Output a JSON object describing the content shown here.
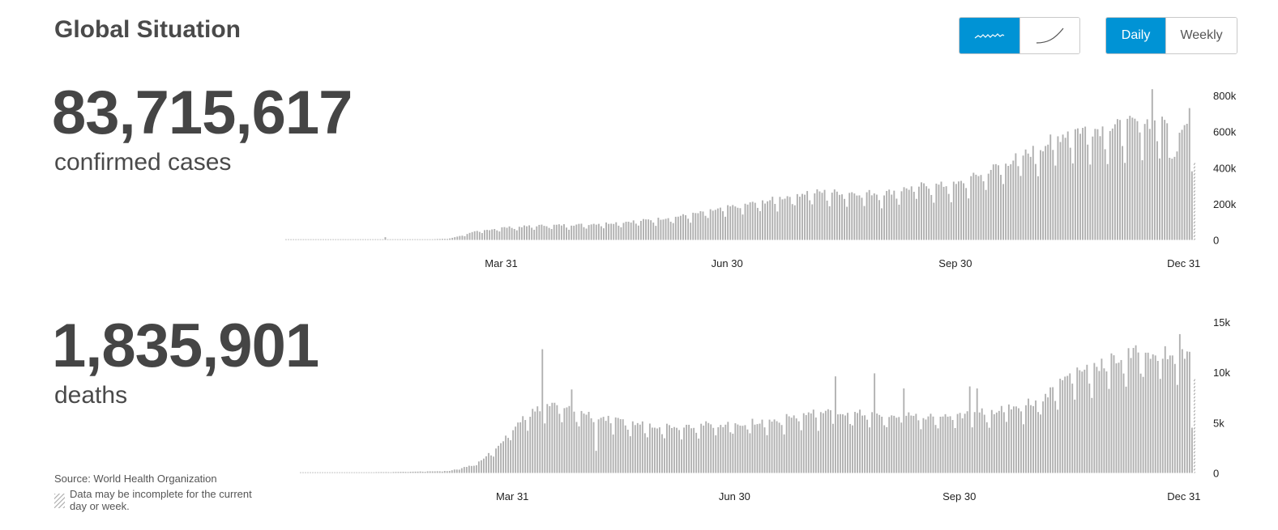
{
  "page": {
    "title": "Global Situation"
  },
  "controls": {
    "mode_buttons": [
      {
        "icon": "sparkline-daily-icon",
        "active": true
      },
      {
        "icon": "cumulative-curve-icon",
        "active": false
      }
    ],
    "period_buttons": [
      {
        "label": "Daily",
        "active": true
      },
      {
        "label": "Weekly",
        "active": false
      }
    ]
  },
  "metrics": {
    "cases": {
      "value": "83,715,617",
      "label": "confirmed cases"
    },
    "deaths": {
      "value": "1,835,901",
      "label": "deaths"
    }
  },
  "footer": {
    "source": "Source: World Health Organization",
    "note": "Data may be incomplete for the current day or week."
  },
  "colors": {
    "bar": "#b0b0b0",
    "accent": "#0093d5",
    "text": "#4a4a4a"
  },
  "chart_data": [
    {
      "type": "bar",
      "name": "cases",
      "x_start": "2020-01-04",
      "x_end": "2021-01-04",
      "xticks": [
        {
          "date": "2020-03-31",
          "label": "Mar 31"
        },
        {
          "date": "2020-06-30",
          "label": "Jun 30"
        },
        {
          "date": "2020-09-30",
          "label": "Sep 30"
        },
        {
          "date": "2020-12-31",
          "label": "Dec 31"
        }
      ],
      "yticks": [
        {
          "value": 0,
          "label": "0"
        },
        {
          "value": 200000,
          "label": "200k"
        },
        {
          "value": 400000,
          "label": "400k"
        },
        {
          "value": 600000,
          "label": "600k"
        },
        {
          "value": 800000,
          "label": "800k"
        }
      ],
      "ylim": [
        0,
        800000
      ],
      "weekly_pattern": "dips every 7th day",
      "incomplete_last_day": true,
      "weekly_dip_factor": 0.72,
      "trend": [
        {
          "date": "2020-01-04",
          "value": 0
        },
        {
          "date": "2020-02-13",
          "value": 1500
        },
        {
          "date": "2020-03-01",
          "value": 2000
        },
        {
          "date": "2020-03-10",
          "value": 8000
        },
        {
          "date": "2020-03-20",
          "value": 45000
        },
        {
          "date": "2020-03-31",
          "value": 68000
        },
        {
          "date": "2020-04-15",
          "value": 80000
        },
        {
          "date": "2020-05-01",
          "value": 85000
        },
        {
          "date": "2020-05-15",
          "value": 95000
        },
        {
          "date": "2020-06-01",
          "value": 115000
        },
        {
          "date": "2020-06-15",
          "value": 140000
        },
        {
          "date": "2020-06-30",
          "value": 180000
        },
        {
          "date": "2020-07-15",
          "value": 215000
        },
        {
          "date": "2020-08-01",
          "value": 265000
        },
        {
          "date": "2020-08-15",
          "value": 265000
        },
        {
          "date": "2020-09-01",
          "value": 260000
        },
        {
          "date": "2020-09-15",
          "value": 300000
        },
        {
          "date": "2020-09-30",
          "value": 305000
        },
        {
          "date": "2020-10-15",
          "value": 400000
        },
        {
          "date": "2020-11-01",
          "value": 500000
        },
        {
          "date": "2020-11-15",
          "value": 610000
        },
        {
          "date": "2020-12-01",
          "value": 620000
        },
        {
          "date": "2020-12-15",
          "value": 660000
        },
        {
          "date": "2020-12-31",
          "value": 620000
        },
        {
          "date": "2021-01-04",
          "value": 640000
        }
      ],
      "spikes": [
        {
          "date": "2020-02-13",
          "value": 15000
        },
        {
          "date": "2020-12-18",
          "value": 835000
        },
        {
          "date": "2020-12-23",
          "value": 665000
        },
        {
          "date": "2020-12-25",
          "value": 455000
        },
        {
          "date": "2020-12-26",
          "value": 450000
        },
        {
          "date": "2020-12-27",
          "value": 460000
        },
        {
          "date": "2020-12-28",
          "value": 490000
        },
        {
          "date": "2020-12-30",
          "value": 610000
        },
        {
          "date": "2021-01-02",
          "value": 730000
        },
        {
          "date": "2021-01-03",
          "value": 380000
        }
      ]
    },
    {
      "type": "bar",
      "name": "deaths",
      "x_start": "2020-01-04",
      "x_end": "2021-01-04",
      "xticks": [
        {
          "date": "2020-03-31",
          "label": "Mar 31"
        },
        {
          "date": "2020-06-30",
          "label": "Jun 30"
        },
        {
          "date": "2020-09-30",
          "label": "Sep 30"
        },
        {
          "date": "2020-12-31",
          "label": "Dec 31"
        }
      ],
      "yticks": [
        {
          "value": 0,
          "label": "0"
        },
        {
          "value": 5000,
          "label": "5k"
        },
        {
          "value": 10000,
          "label": "10k"
        },
        {
          "value": 15000,
          "label": "15k"
        }
      ],
      "ylim": [
        0,
        15000
      ],
      "weekly_pattern": "dips every 7th day",
      "incomplete_last_day": true,
      "weekly_dip_factor": 0.75,
      "trend": [
        {
          "date": "2020-01-04",
          "value": 0
        },
        {
          "date": "2020-02-13",
          "value": 100
        },
        {
          "date": "2020-03-05",
          "value": 200
        },
        {
          "date": "2020-03-15",
          "value": 800
        },
        {
          "date": "2020-03-25",
          "value": 2600
        },
        {
          "date": "2020-04-05",
          "value": 5800
        },
        {
          "date": "2020-04-15",
          "value": 6800
        },
        {
          "date": "2020-04-25",
          "value": 6200
        },
        {
          "date": "2020-05-15",
          "value": 5000
        },
        {
          "date": "2020-06-01",
          "value": 4700
        },
        {
          "date": "2020-06-30",
          "value": 4900
        },
        {
          "date": "2020-07-15",
          "value": 5200
        },
        {
          "date": "2020-08-01",
          "value": 6000
        },
        {
          "date": "2020-08-15",
          "value": 6000
        },
        {
          "date": "2020-09-01",
          "value": 5700
        },
        {
          "date": "2020-09-15",
          "value": 5600
        },
        {
          "date": "2020-09-30",
          "value": 5700
        },
        {
          "date": "2020-10-15",
          "value": 6300
        },
        {
          "date": "2020-11-01",
          "value": 7200
        },
        {
          "date": "2020-11-15",
          "value": 10000
        },
        {
          "date": "2020-12-01",
          "value": 11200
        },
        {
          "date": "2020-12-15",
          "value": 12200
        },
        {
          "date": "2020-12-31",
          "value": 11800
        },
        {
          "date": "2021-01-04",
          "value": 12000
        }
      ],
      "spikes": [
        {
          "date": "2020-04-12",
          "value": 12300
        },
        {
          "date": "2020-04-24",
          "value": 8300
        },
        {
          "date": "2020-05-04",
          "value": 2200
        },
        {
          "date": "2020-08-10",
          "value": 9600
        },
        {
          "date": "2020-08-26",
          "value": 9900
        },
        {
          "date": "2020-09-07",
          "value": 8400
        },
        {
          "date": "2020-10-04",
          "value": 8600
        },
        {
          "date": "2020-10-07",
          "value": 8400
        },
        {
          "date": "2020-12-29",
          "value": 13800
        },
        {
          "date": "2021-01-03",
          "value": 4500
        }
      ]
    }
  ]
}
